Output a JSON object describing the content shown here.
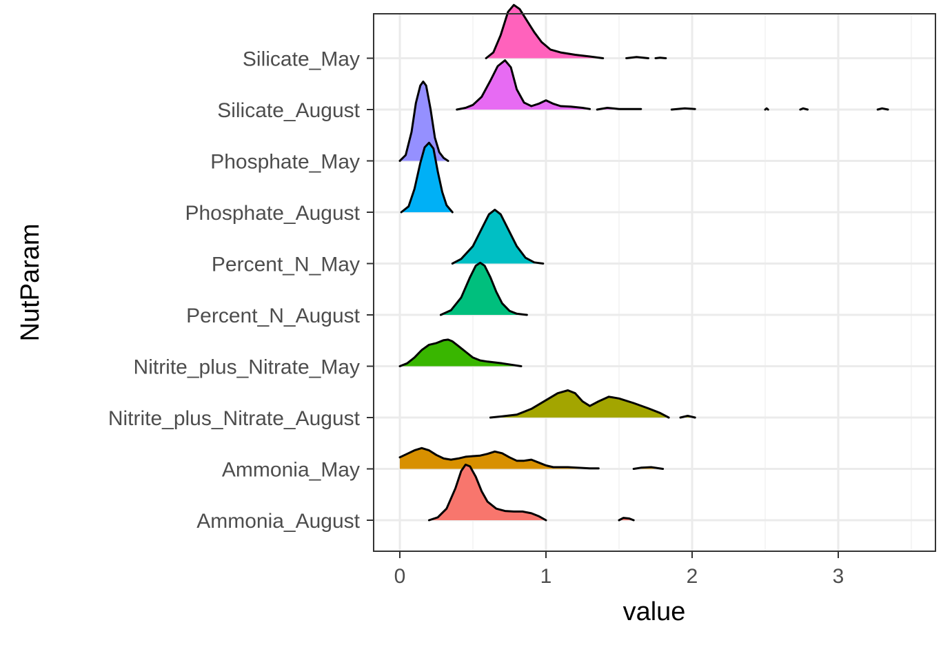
{
  "chart_data": {
    "type": "ridgeline",
    "title": "",
    "xlabel": "value",
    "ylabel": "NutParam",
    "xlim": [
      -0.17,
      3.67
    ],
    "x_ticks": [
      0,
      1,
      2,
      3
    ],
    "grid": true,
    "legend": "none",
    "categories": [
      "Silicate_May",
      "Silicate_August",
      "Phosphate_May",
      "Phosphate_August",
      "Percent_N_May",
      "Percent_N_August",
      "Nitrite_plus_Nitrate_May",
      "Nitrite_plus_Nitrate_August",
      "Ammonia_May",
      "Ammonia_August"
    ],
    "series": [
      {
        "category": "Ammonia_August",
        "color": "#F8766D",
        "segments": [
          [
            [
              0.2,
              0
            ],
            [
              0.26,
              0.05
            ],
            [
              0.32,
              0.2
            ],
            [
              0.38,
              0.55
            ],
            [
              0.42,
              0.85
            ],
            [
              0.45,
              0.96
            ],
            [
              0.48,
              0.93
            ],
            [
              0.52,
              0.75
            ],
            [
              0.56,
              0.5
            ],
            [
              0.6,
              0.32
            ],
            [
              0.66,
              0.2
            ],
            [
              0.72,
              0.16
            ],
            [
              0.78,
              0.15
            ],
            [
              0.84,
              0.15
            ],
            [
              0.9,
              0.12
            ],
            [
              0.95,
              0.07
            ],
            [
              1.0,
              0
            ]
          ],
          [
            [
              1.5,
              0
            ],
            [
              1.53,
              0.04
            ],
            [
              1.57,
              0.03
            ],
            [
              1.6,
              0
            ]
          ]
        ]
      },
      {
        "category": "Ammonia_May",
        "color": "#D89000",
        "segments": [
          [
            [
              0.0,
              0.2
            ],
            [
              0.05,
              0.26
            ],
            [
              0.1,
              0.32
            ],
            [
              0.15,
              0.36
            ],
            [
              0.2,
              0.32
            ],
            [
              0.25,
              0.24
            ],
            [
              0.3,
              0.18
            ],
            [
              0.35,
              0.16
            ],
            [
              0.4,
              0.18
            ],
            [
              0.45,
              0.21
            ],
            [
              0.5,
              0.22
            ],
            [
              0.55,
              0.23
            ],
            [
              0.6,
              0.26
            ],
            [
              0.65,
              0.3
            ],
            [
              0.7,
              0.27
            ],
            [
              0.75,
              0.2
            ],
            [
              0.8,
              0.14
            ],
            [
              0.85,
              0.14
            ],
            [
              0.9,
              0.16
            ],
            [
              0.95,
              0.11
            ],
            [
              1.0,
              0.06
            ],
            [
              1.05,
              0.03
            ],
            [
              1.15,
              0.03
            ],
            [
              1.3,
              0.01
            ],
            [
              1.36,
              0.01
            ]
          ],
          [
            [
              1.6,
              0
            ],
            [
              1.65,
              0.02
            ],
            [
              1.72,
              0.03
            ],
            [
              1.8,
              0
            ]
          ]
        ]
      },
      {
        "category": "Nitrite_plus_Nitrate_August",
        "color": "#A3A500",
        "segments": [
          [
            [
              0.62,
              0
            ],
            [
              0.7,
              0.02
            ],
            [
              0.8,
              0.05
            ],
            [
              0.9,
              0.15
            ],
            [
              1.0,
              0.3
            ],
            [
              1.08,
              0.42
            ],
            [
              1.15,
              0.47
            ],
            [
              1.2,
              0.42
            ],
            [
              1.25,
              0.28
            ],
            [
              1.3,
              0.2
            ],
            [
              1.36,
              0.28
            ],
            [
              1.43,
              0.36
            ],
            [
              1.5,
              0.33
            ],
            [
              1.6,
              0.25
            ],
            [
              1.7,
              0.16
            ],
            [
              1.78,
              0.08
            ],
            [
              1.84,
              0
            ]
          ],
          [
            [
              1.92,
              0
            ],
            [
              1.97,
              0.03
            ],
            [
              2.02,
              0
            ]
          ]
        ]
      },
      {
        "category": "Nitrite_plus_Nitrate_May",
        "color": "#39B600",
        "segments": [
          [
            [
              0.0,
              0
            ],
            [
              0.05,
              0.05
            ],
            [
              0.1,
              0.15
            ],
            [
              0.15,
              0.28
            ],
            [
              0.2,
              0.37
            ],
            [
              0.25,
              0.4
            ],
            [
              0.3,
              0.45
            ],
            [
              0.33,
              0.46
            ],
            [
              0.36,
              0.43
            ],
            [
              0.4,
              0.35
            ],
            [
              0.45,
              0.25
            ],
            [
              0.5,
              0.15
            ],
            [
              0.55,
              0.1
            ],
            [
              0.6,
              0.08
            ],
            [
              0.7,
              0.05
            ],
            [
              0.83,
              0.0
            ]
          ]
        ]
      },
      {
        "category": "Percent_N_August",
        "color": "#00BF7D",
        "segments": [
          [
            [
              0.28,
              0
            ],
            [
              0.35,
              0.08
            ],
            [
              0.42,
              0.3
            ],
            [
              0.48,
              0.65
            ],
            [
              0.52,
              0.85
            ],
            [
              0.55,
              0.9
            ],
            [
              0.58,
              0.85
            ],
            [
              0.62,
              0.65
            ],
            [
              0.66,
              0.4
            ],
            [
              0.7,
              0.2
            ],
            [
              0.75,
              0.07
            ],
            [
              0.8,
              0.02
            ],
            [
              0.87,
              0
            ]
          ]
        ]
      },
      {
        "category": "Percent_N_May",
        "color": "#00BFC4",
        "segments": [
          [
            [
              0.36,
              0
            ],
            [
              0.42,
              0.08
            ],
            [
              0.5,
              0.3
            ],
            [
              0.56,
              0.6
            ],
            [
              0.61,
              0.85
            ],
            [
              0.65,
              0.93
            ],
            [
              0.69,
              0.85
            ],
            [
              0.74,
              0.6
            ],
            [
              0.8,
              0.3
            ],
            [
              0.86,
              0.1
            ],
            [
              0.92,
              0.02
            ],
            [
              0.98,
              0
            ]
          ]
        ]
      },
      {
        "category": "Phosphate_August",
        "color": "#00B0F6",
        "segments": [
          [
            [
              0.01,
              0
            ],
            [
              0.06,
              0.1
            ],
            [
              0.1,
              0.4
            ],
            [
              0.14,
              0.85
            ],
            [
              0.17,
              1.12
            ],
            [
              0.2,
              1.2
            ],
            [
              0.23,
              1.1
            ],
            [
              0.26,
              0.7
            ],
            [
              0.29,
              0.35
            ],
            [
              0.32,
              0.12
            ],
            [
              0.36,
              0.0
            ]
          ]
        ]
      },
      {
        "category": "Phosphate_May",
        "color": "#9590FF",
        "segments": [
          [
            [
              0.0,
              0
            ],
            [
              0.04,
              0.1
            ],
            [
              0.08,
              0.5
            ],
            [
              0.11,
              1.0
            ],
            [
              0.14,
              1.3
            ],
            [
              0.16,
              1.37
            ],
            [
              0.18,
              1.3
            ],
            [
              0.21,
              0.9
            ],
            [
              0.24,
              0.4
            ],
            [
              0.27,
              0.15
            ],
            [
              0.3,
              0.05
            ],
            [
              0.33,
              0.0
            ]
          ]
        ]
      },
      {
        "category": "Silicate_August",
        "color": "#E76BF3",
        "segments": [
          [
            [
              0.39,
              0
            ],
            [
              0.45,
              0.03
            ],
            [
              0.5,
              0.08
            ],
            [
              0.56,
              0.22
            ],
            [
              0.62,
              0.5
            ],
            [
              0.67,
              0.75
            ],
            [
              0.72,
              0.85
            ],
            [
              0.76,
              0.73
            ],
            [
              0.8,
              0.35
            ],
            [
              0.85,
              0.12
            ],
            [
              0.9,
              0.06
            ],
            [
              0.95,
              0.1
            ],
            [
              1.0,
              0.16
            ],
            [
              1.05,
              0.1
            ],
            [
              1.1,
              0.06
            ],
            [
              1.17,
              0.05
            ],
            [
              1.25,
              0.03
            ],
            [
              1.3,
              0.01
            ]
          ],
          [
            [
              1.35,
              0
            ],
            [
              1.42,
              0.03
            ],
            [
              1.5,
              0.01
            ],
            [
              1.65,
              0.01
            ]
          ],
          [
            [
              1.86,
              0
            ],
            [
              1.95,
              0.02
            ],
            [
              2.02,
              0.01
            ]
          ],
          [
            [
              2.5,
              0
            ],
            [
              2.51,
              0.02
            ],
            [
              2.52,
              0
            ]
          ],
          [
            [
              2.74,
              0
            ],
            [
              2.76,
              0.02
            ],
            [
              2.79,
              0
            ]
          ],
          [
            [
              3.27,
              0
            ],
            [
              3.3,
              0.02
            ],
            [
              3.34,
              0
            ]
          ]
        ]
      },
      {
        "category": "Silicate_May",
        "color": "#FF62BC",
        "segments": [
          [
            [
              0.59,
              0
            ],
            [
              0.64,
              0.1
            ],
            [
              0.69,
              0.4
            ],
            [
              0.74,
              0.8
            ],
            [
              0.78,
              0.92
            ],
            [
              0.82,
              0.85
            ],
            [
              0.87,
              0.65
            ],
            [
              0.92,
              0.45
            ],
            [
              0.97,
              0.28
            ],
            [
              1.03,
              0.15
            ],
            [
              1.1,
              0.1
            ],
            [
              1.2,
              0.06
            ],
            [
              1.3,
              0.03
            ],
            [
              1.39,
              0
            ]
          ],
          [
            [
              1.55,
              0
            ],
            [
              1.62,
              0.02
            ],
            [
              1.7,
              0
            ]
          ],
          [
            [
              1.75,
              0
            ],
            [
              1.78,
              0.01
            ],
            [
              1.82,
              0
            ]
          ]
        ]
      }
    ]
  }
}
